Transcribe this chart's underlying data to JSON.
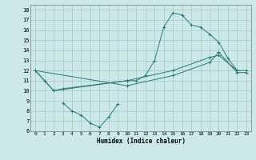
{
  "title": "",
  "xlabel": "Humidex (Indice chaleur)",
  "xlim": [
    -0.5,
    23.5
  ],
  "ylim": [
    6,
    18.5
  ],
  "xticks": [
    0,
    1,
    2,
    3,
    4,
    5,
    6,
    7,
    8,
    9,
    10,
    11,
    12,
    13,
    14,
    15,
    16,
    17,
    18,
    19,
    20,
    21,
    22,
    23
  ],
  "yticks": [
    6,
    7,
    8,
    9,
    10,
    11,
    12,
    13,
    14,
    15,
    16,
    17,
    18
  ],
  "background_color": "#cce8e8",
  "grid_color": "#aacccc",
  "line_color": "#2a7a72",
  "series1_x": [
    0,
    1,
    2,
    10,
    11,
    12,
    13,
    14,
    15,
    16,
    17,
    18,
    19,
    20,
    21,
    22
  ],
  "series1_y": [
    12,
    11,
    10,
    11,
    11,
    11.5,
    13,
    16.3,
    17.7,
    17.5,
    16.5,
    16.3,
    15.6,
    14.8,
    13.2,
    12
  ],
  "series2_x": [
    3,
    4,
    5,
    6,
    7,
    8,
    9
  ],
  "series2_y": [
    8.8,
    8.0,
    7.6,
    6.8,
    6.4,
    7.4,
    8.7
  ],
  "series3_x": [
    0,
    1,
    2,
    3,
    10,
    15,
    19,
    20,
    22,
    23
  ],
  "series3_y": [
    12,
    11,
    10,
    10.2,
    11.0,
    12.0,
    13.3,
    13.5,
    12.0,
    12.0
  ],
  "series4_x": [
    0,
    10,
    15,
    19,
    20,
    22,
    23
  ],
  "series4_y": [
    12,
    10.5,
    11.5,
    12.8,
    13.8,
    11.8,
    11.8
  ]
}
